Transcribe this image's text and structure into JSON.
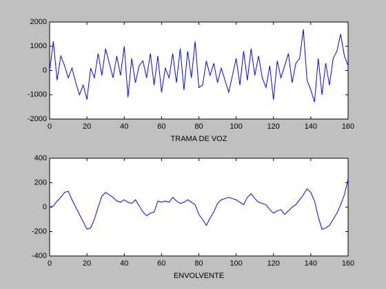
{
  "chart_data": [
    {
      "type": "line",
      "xlabel": "TRAMA DE VOZ",
      "x": [
        0,
        2,
        4,
        6,
        8,
        10,
        12,
        14,
        16,
        18,
        20,
        22,
        24,
        26,
        28,
        30,
        32,
        34,
        36,
        38,
        40,
        42,
        44,
        46,
        48,
        50,
        52,
        54,
        56,
        58,
        60,
        62,
        64,
        66,
        68,
        70,
        72,
        74,
        76,
        78,
        80,
        82,
        84,
        86,
        88,
        90,
        92,
        94,
        96,
        98,
        100,
        102,
        104,
        106,
        108,
        110,
        112,
        114,
        116,
        118,
        120,
        122,
        124,
        126,
        128,
        130,
        132,
        134,
        136,
        138,
        140,
        142,
        144,
        146,
        148,
        150,
        152,
        154,
        156,
        158,
        160
      ],
      "series": [
        {
          "color": "#0000ff",
          "values": [
            0,
            1200,
            -400,
            600,
            200,
            -300,
            100,
            -500,
            -1000,
            -600,
            -1200,
            100,
            -300,
            700,
            -200,
            900,
            300,
            -300,
            600,
            -200,
            1000,
            -1100,
            500,
            -500,
            200,
            400,
            -300,
            700,
            -600,
            600,
            -900,
            100,
            -300,
            700,
            -500,
            900,
            -800,
            800,
            -300,
            1200,
            -700,
            -600,
            400,
            -200,
            300,
            -500,
            100,
            -400,
            -900,
            -200,
            500,
            -600,
            800,
            -400,
            900,
            -200,
            600,
            -300,
            -700,
            200,
            -1200,
            400,
            -300,
            200,
            700,
            -500,
            300,
            500,
            1700,
            -400,
            -800,
            -1300,
            500,
            -1000,
            300,
            -600,
            500,
            800,
            1500,
            600,
            200
          ]
        }
      ],
      "xlim": [
        0,
        160
      ],
      "xticks": [
        0,
        20,
        40,
        60,
        80,
        100,
        120,
        140,
        160
      ],
      "ylim": [
        -2000,
        2000
      ],
      "yticks": [
        -2000,
        -1000,
        0,
        1000,
        2000
      ]
    },
    {
      "type": "line",
      "xlabel": "ENVOLVENTE",
      "x": [
        0,
        2,
        4,
        6,
        8,
        10,
        12,
        14,
        16,
        18,
        20,
        22,
        24,
        26,
        28,
        30,
        32,
        34,
        36,
        38,
        40,
        42,
        44,
        46,
        48,
        50,
        52,
        54,
        56,
        58,
        60,
        62,
        64,
        66,
        68,
        70,
        72,
        74,
        76,
        78,
        80,
        82,
        84,
        86,
        88,
        90,
        92,
        94,
        96,
        98,
        100,
        102,
        104,
        106,
        108,
        110,
        112,
        114,
        116,
        118,
        120,
        122,
        124,
        126,
        128,
        130,
        132,
        134,
        136,
        138,
        140,
        142,
        144,
        146,
        148,
        150,
        152,
        154,
        156,
        158,
        160
      ],
      "series": [
        {
          "color": "#0000ff",
          "values": [
            0,
            10,
            50,
            80,
            120,
            130,
            60,
            0,
            -60,
            -120,
            -180,
            -170,
            -100,
            0,
            90,
            120,
            100,
            80,
            50,
            40,
            60,
            40,
            30,
            60,
            10,
            -40,
            -70,
            -50,
            -40,
            50,
            40,
            50,
            40,
            80,
            50,
            30,
            40,
            60,
            40,
            20,
            -60,
            -100,
            -150,
            -90,
            -40,
            30,
            60,
            70,
            80,
            70,
            60,
            40,
            20,
            80,
            110,
            70,
            40,
            30,
            20,
            -20,
            -50,
            -30,
            -20,
            -60,
            -30,
            0,
            20,
            60,
            100,
            150,
            120,
            50,
            -80,
            -180,
            -170,
            -150,
            -100,
            -50,
            20,
            100,
            230
          ]
        }
      ],
      "xlim": [
        0,
        160
      ],
      "xticks": [
        0,
        20,
        40,
        60,
        80,
        100,
        120,
        140,
        160
      ],
      "ylim": [
        -400,
        400
      ],
      "yticks": [
        -400,
        -200,
        0,
        200,
        400
      ]
    }
  ]
}
